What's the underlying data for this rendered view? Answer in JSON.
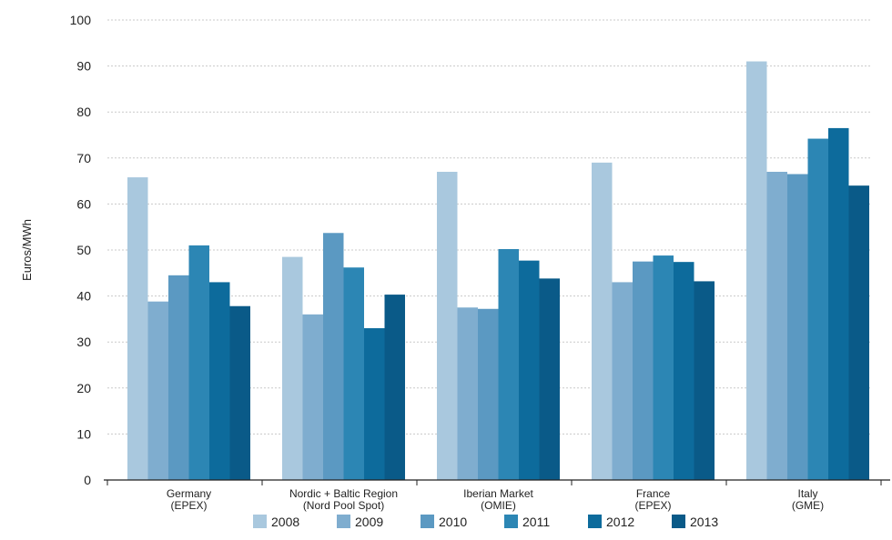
{
  "chart_data": {
    "type": "bar",
    "title": "",
    "xlabel": "",
    "ylabel": "Euros/MWh",
    "ylim": [
      0,
      100
    ],
    "yticks": [
      0,
      10,
      20,
      30,
      40,
      50,
      60,
      70,
      80,
      90,
      100
    ],
    "grid": true,
    "legend_position": "bottom",
    "categories": [
      [
        "Germany",
        "(EPEX)"
      ],
      [
        "Nordic + Baltic Region",
        "(Nord Pool Spot)"
      ],
      [
        "Iberian Market",
        "(OMIE)"
      ],
      [
        "France",
        "(EPEX)"
      ],
      [
        "Italy",
        "(GME)"
      ]
    ],
    "series": [
      {
        "name": "2008",
        "color": "#a9c8de",
        "values": [
          65.8,
          48.5,
          67.0,
          69.0,
          91.0
        ]
      },
      {
        "name": "2009",
        "color": "#7fadcf",
        "values": [
          38.8,
          36.0,
          37.5,
          43.0,
          67.0
        ]
      },
      {
        "name": "2010",
        "color": "#5b99c2",
        "values": [
          44.5,
          53.7,
          37.2,
          47.5,
          66.5
        ]
      },
      {
        "name": "2011",
        "color": "#2c86b4",
        "values": [
          51.0,
          46.2,
          50.2,
          48.8,
          74.2
        ]
      },
      {
        "name": "2012",
        "color": "#0d6b9c",
        "values": [
          43.0,
          33.0,
          47.7,
          47.4,
          76.5
        ]
      },
      {
        "name": "2013",
        "color": "#0a5a88",
        "values": [
          37.8,
          40.3,
          43.8,
          43.2,
          64.0
        ]
      }
    ]
  }
}
